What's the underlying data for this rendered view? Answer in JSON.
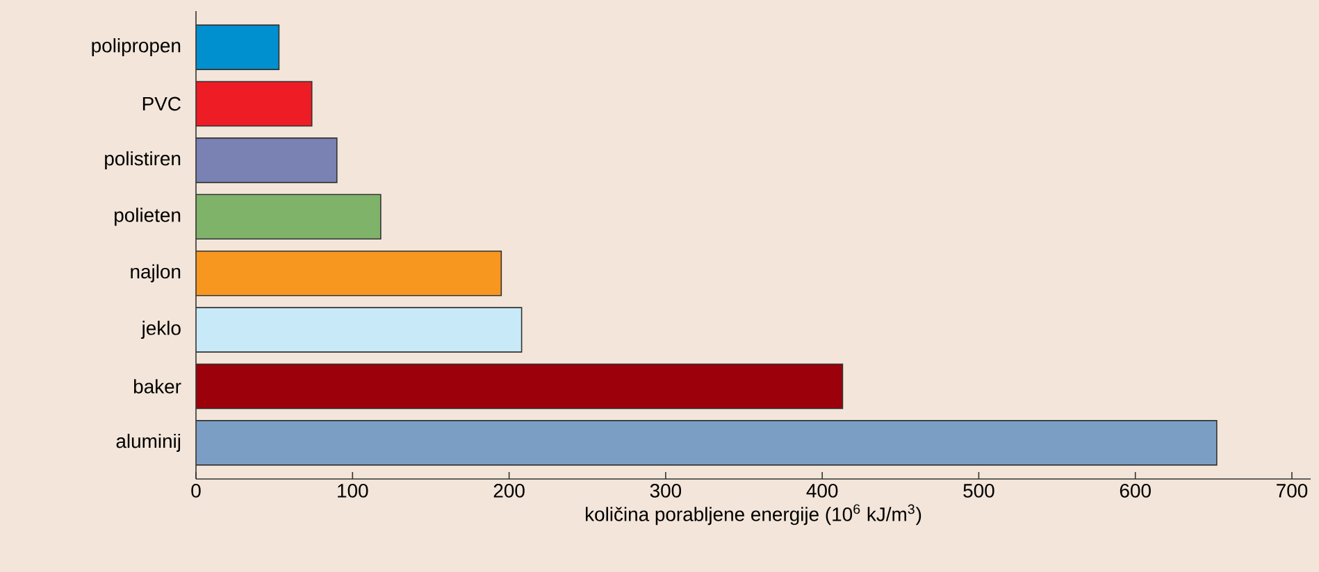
{
  "chart_data": {
    "type": "bar",
    "orientation": "horizontal",
    "xlabel": "količina porabljene energije (10$^{6}$ kJ/m$^{3}$)",
    "categories": [
      "polipropen",
      "PVC",
      "polistiren",
      "polieten",
      "najlon",
      "jeklo",
      "baker",
      "aluminij"
    ],
    "values": [
      53,
      74,
      90,
      118,
      195,
      208,
      413,
      652
    ],
    "colors": [
      "#0090cf",
      "#ee1c25",
      "#7a82b4",
      "#80b36a",
      "#f7971f",
      "#c8eaf8",
      "#9c000b",
      "#7b9fc4"
    ],
    "xlim": [
      0,
      712
    ],
    "xticks": [
      0,
      100,
      200,
      300,
      400,
      500,
      600,
      700
    ]
  }
}
